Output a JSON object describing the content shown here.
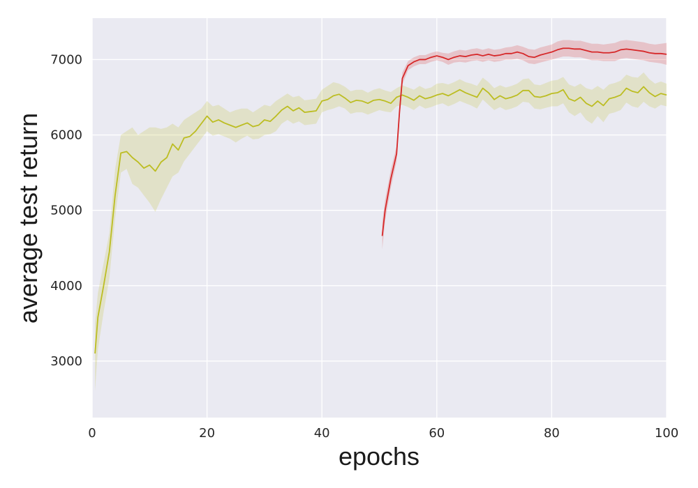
{
  "chart_data": {
    "type": "line",
    "xlabel": "epochs",
    "ylabel": "average test return",
    "xlim": [
      0,
      100
    ],
    "ylim": [
      2250,
      7550
    ],
    "x_ticks": [
      0,
      20,
      40,
      60,
      80,
      100
    ],
    "y_ticks": [
      3000,
      4000,
      5000,
      6000,
      7000
    ],
    "grid": true,
    "legend": "none",
    "colors": {
      "background": "#EAEAF2",
      "grid": "#FFFFFF"
    },
    "series": [
      {
        "color": "#BCBD22",
        "points": [
          [
            0.5,
            3100,
            2600,
            3500
          ],
          [
            1,
            3580,
            3150,
            3900
          ],
          [
            2,
            4000,
            3650,
            4300
          ],
          [
            3,
            4450,
            4100,
            4700
          ],
          [
            4,
            5200,
            4900,
            5550
          ],
          [
            5,
            5760,
            5500,
            6000
          ],
          [
            6,
            5780,
            5550,
            6050
          ],
          [
            7,
            5700,
            5350,
            6100
          ],
          [
            8,
            5640,
            5300,
            6000
          ],
          [
            9,
            5560,
            5200,
            6050
          ],
          [
            10,
            5600,
            5100,
            6100
          ],
          [
            11,
            5520,
            4980,
            6100
          ],
          [
            12,
            5640,
            5150,
            6080
          ],
          [
            13,
            5700,
            5300,
            6100
          ],
          [
            14,
            5880,
            5450,
            6150
          ],
          [
            15,
            5800,
            5500,
            6100
          ],
          [
            16,
            5960,
            5650,
            6200
          ],
          [
            17,
            5980,
            5750,
            6250
          ],
          [
            18,
            6050,
            5850,
            6300
          ],
          [
            19,
            6150,
            5950,
            6350
          ],
          [
            20,
            6250,
            6050,
            6450
          ],
          [
            21,
            6170,
            5990,
            6380
          ],
          [
            22,
            6200,
            6010,
            6400
          ],
          [
            23,
            6160,
            5980,
            6350
          ],
          [
            24,
            6130,
            5950,
            6300
          ],
          [
            25,
            6100,
            5900,
            6330
          ],
          [
            26,
            6130,
            5950,
            6350
          ],
          [
            27,
            6160,
            5990,
            6350
          ],
          [
            28,
            6110,
            5940,
            6300
          ],
          [
            29,
            6130,
            5950,
            6350
          ],
          [
            30,
            6200,
            6000,
            6400
          ],
          [
            31,
            6180,
            6010,
            6380
          ],
          [
            32,
            6250,
            6050,
            6450
          ],
          [
            33,
            6330,
            6150,
            6500
          ],
          [
            34,
            6380,
            6200,
            6550
          ],
          [
            35,
            6320,
            6150,
            6500
          ],
          [
            36,
            6360,
            6180,
            6520
          ],
          [
            37,
            6300,
            6130,
            6460
          ],
          [
            38,
            6310,
            6140,
            6470
          ],
          [
            39,
            6320,
            6150,
            6480
          ],
          [
            40,
            6450,
            6300,
            6600
          ],
          [
            41,
            6470,
            6330,
            6650
          ],
          [
            42,
            6520,
            6350,
            6700
          ],
          [
            43,
            6540,
            6380,
            6680
          ],
          [
            44,
            6490,
            6350,
            6640
          ],
          [
            45,
            6430,
            6280,
            6580
          ],
          [
            46,
            6460,
            6300,
            6600
          ],
          [
            47,
            6450,
            6300,
            6600
          ],
          [
            48,
            6420,
            6270,
            6560
          ],
          [
            49,
            6460,
            6300,
            6600
          ],
          [
            50,
            6470,
            6330,
            6620
          ],
          [
            51,
            6450,
            6310,
            6590
          ],
          [
            52,
            6420,
            6300,
            6570
          ],
          [
            53,
            6500,
            6380,
            6620
          ],
          [
            54,
            6530,
            6400,
            6660
          ],
          [
            55,
            6500,
            6370,
            6630
          ],
          [
            56,
            6460,
            6330,
            6600
          ],
          [
            57,
            6520,
            6390,
            6650
          ],
          [
            58,
            6480,
            6350,
            6610
          ],
          [
            59,
            6500,
            6370,
            6630
          ],
          [
            60,
            6530,
            6400,
            6680
          ],
          [
            61,
            6550,
            6420,
            6690
          ],
          [
            62,
            6520,
            6380,
            6670
          ],
          [
            63,
            6560,
            6410,
            6700
          ],
          [
            64,
            6600,
            6450,
            6740
          ],
          [
            65,
            6560,
            6420,
            6700
          ],
          [
            66,
            6530,
            6390,
            6680
          ],
          [
            67,
            6500,
            6350,
            6650
          ],
          [
            68,
            6620,
            6470,
            6760
          ],
          [
            69,
            6560,
            6400,
            6700
          ],
          [
            70,
            6470,
            6330,
            6620
          ],
          [
            71,
            6520,
            6370,
            6660
          ],
          [
            72,
            6480,
            6330,
            6630
          ],
          [
            73,
            6500,
            6350,
            6650
          ],
          [
            74,
            6530,
            6380,
            6680
          ],
          [
            75,
            6590,
            6440,
            6740
          ],
          [
            76,
            6590,
            6430,
            6750
          ],
          [
            77,
            6510,
            6350,
            6670
          ],
          [
            78,
            6500,
            6340,
            6660
          ],
          [
            79,
            6520,
            6360,
            6690
          ],
          [
            80,
            6550,
            6380,
            6720
          ],
          [
            81,
            6560,
            6380,
            6730
          ],
          [
            82,
            6600,
            6420,
            6770
          ],
          [
            83,
            6480,
            6300,
            6670
          ],
          [
            84,
            6450,
            6250,
            6640
          ],
          [
            85,
            6500,
            6300,
            6680
          ],
          [
            86,
            6420,
            6200,
            6620
          ],
          [
            87,
            6380,
            6150,
            6600
          ],
          [
            88,
            6450,
            6250,
            6650
          ],
          [
            89,
            6390,
            6170,
            6600
          ],
          [
            90,
            6480,
            6280,
            6670
          ],
          [
            91,
            6500,
            6300,
            6690
          ],
          [
            92,
            6530,
            6330,
            6720
          ],
          [
            93,
            6620,
            6430,
            6800
          ],
          [
            94,
            6580,
            6380,
            6770
          ],
          [
            95,
            6560,
            6360,
            6760
          ],
          [
            96,
            6640,
            6440,
            6830
          ],
          [
            97,
            6560,
            6380,
            6740
          ],
          [
            98,
            6510,
            6350,
            6680
          ],
          [
            99,
            6550,
            6400,
            6710
          ],
          [
            100,
            6530,
            6380,
            6680
          ]
        ]
      },
      {
        "color": "#D62728",
        "points": [
          [
            50.5,
            4660,
            4480,
            4840
          ],
          [
            51,
            5000,
            4860,
            5140
          ],
          [
            52,
            5420,
            5300,
            5540
          ],
          [
            53,
            5750,
            5650,
            5850
          ],
          [
            53.5,
            6300,
            6200,
            6400
          ],
          [
            54,
            6750,
            6670,
            6830
          ],
          [
            55,
            6920,
            6860,
            6980
          ],
          [
            56,
            6970,
            6910,
            7030
          ],
          [
            57,
            7000,
            6940,
            7060
          ],
          [
            58,
            7000,
            6940,
            7060
          ],
          [
            59,
            7030,
            6970,
            7090
          ],
          [
            60,
            7050,
            6990,
            7110
          ],
          [
            61,
            7030,
            6970,
            7090
          ],
          [
            62,
            7000,
            6930,
            7080
          ],
          [
            63,
            7030,
            6960,
            7110
          ],
          [
            64,
            7050,
            6970,
            7130
          ],
          [
            65,
            7040,
            6960,
            7120
          ],
          [
            66,
            7060,
            6980,
            7140
          ],
          [
            67,
            7070,
            6990,
            7150
          ],
          [
            68,
            7050,
            6970,
            7130
          ],
          [
            69,
            7070,
            6990,
            7150
          ],
          [
            70,
            7050,
            6970,
            7130
          ],
          [
            71,
            7060,
            6980,
            7140
          ],
          [
            72,
            7080,
            7000,
            7160
          ],
          [
            73,
            7080,
            7000,
            7170
          ],
          [
            74,
            7100,
            7010,
            7190
          ],
          [
            75,
            7080,
            6990,
            7170
          ],
          [
            76,
            7040,
            6950,
            7140
          ],
          [
            77,
            7030,
            6940,
            7130
          ],
          [
            78,
            7060,
            6960,
            7160
          ],
          [
            79,
            7080,
            6980,
            7180
          ],
          [
            80,
            7100,
            7000,
            7200
          ],
          [
            81,
            7130,
            7020,
            7240
          ],
          [
            82,
            7150,
            7040,
            7260
          ],
          [
            83,
            7150,
            7040,
            7260
          ],
          [
            84,
            7140,
            7030,
            7250
          ],
          [
            85,
            7140,
            7030,
            7250
          ],
          [
            86,
            7120,
            7010,
            7230
          ],
          [
            87,
            7100,
            6990,
            7210
          ],
          [
            88,
            7100,
            6990,
            7210
          ],
          [
            89,
            7090,
            6980,
            7200
          ],
          [
            90,
            7090,
            6980,
            7210
          ],
          [
            91,
            7100,
            6980,
            7220
          ],
          [
            92,
            7130,
            7010,
            7250
          ],
          [
            93,
            7140,
            7020,
            7260
          ],
          [
            94,
            7130,
            7010,
            7250
          ],
          [
            95,
            7120,
            7000,
            7240
          ],
          [
            96,
            7110,
            6990,
            7230
          ],
          [
            97,
            7090,
            6970,
            7210
          ],
          [
            98,
            7080,
            6960,
            7200
          ],
          [
            99,
            7080,
            6950,
            7210
          ],
          [
            100,
            7070,
            6930,
            7220
          ]
        ]
      }
    ]
  }
}
